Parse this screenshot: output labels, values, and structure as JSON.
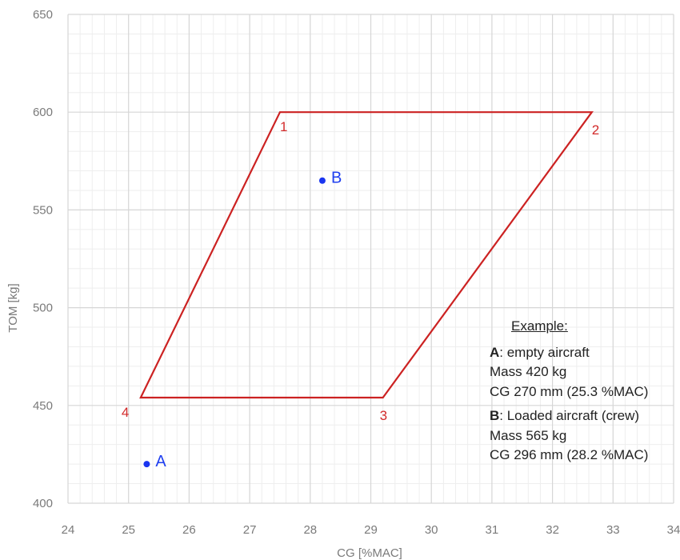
{
  "chart_data": {
    "type": "scatter",
    "xlabel": "CG [%MAC]",
    "ylabel": "TOM [kg]",
    "xlim": [
      24,
      34
    ],
    "ylim": [
      400,
      650
    ],
    "x_ticks": [
      "24",
      "25",
      "26",
      "27",
      "28",
      "29",
      "30",
      "31",
      "32",
      "33",
      "34"
    ],
    "y_ticks": [
      "400",
      "450",
      "500",
      "550",
      "600",
      "650"
    ],
    "grid": true,
    "envelope": {
      "color": "#cc2222",
      "vertices": [
        {
          "label": "1",
          "x": 27.5,
          "y": 600
        },
        {
          "label": "2",
          "x": 32.65,
          "y": 600
        },
        {
          "label": "3",
          "x": 29.2,
          "y": 454
        },
        {
          "label": "4",
          "x": 25.2,
          "y": 454
        }
      ]
    },
    "points": [
      {
        "label": "A",
        "x": 25.3,
        "y": 420,
        "color": "#1a35f0"
      },
      {
        "label": "B",
        "x": 28.2,
        "y": 565,
        "color": "#1a35f0"
      }
    ]
  },
  "example": {
    "title": "Example:",
    "a_key": "A",
    "a_desc": ": empty aircraft",
    "a_mass": "Mass 420 kg",
    "a_cg": "CG 270 mm (25.3 %MAC)",
    "b_key": "B",
    "b_desc": ": Loaded aircraft (crew)",
    "b_mass": "Mass 565 kg",
    "b_cg": "CG 296 mm (28.2 %MAC)"
  }
}
